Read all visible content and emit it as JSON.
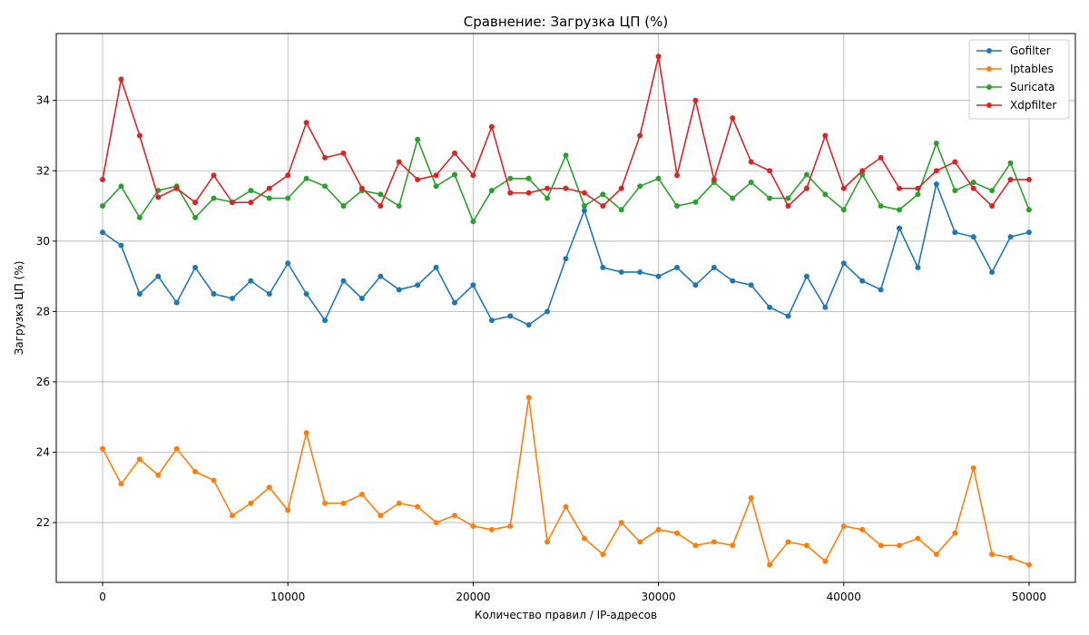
{
  "chart_data": {
    "type": "line",
    "title": "Сравнение: Загрузка ЦП (%)",
    "xlabel": "Количество правил / IP-адресов",
    "ylabel": "Загрузка ЦП (%)",
    "xlim": [
      -2500,
      52500
    ],
    "ylim": [
      20.3,
      35.9
    ],
    "xticks": [
      0,
      10000,
      20000,
      30000,
      40000,
      50000
    ],
    "yticks": [
      22,
      24,
      26,
      28,
      30,
      32,
      34
    ],
    "grid": true,
    "legend_position": "top-right",
    "x": [
      0,
      1000,
      2000,
      3000,
      4000,
      5000,
      6000,
      7000,
      8000,
      9000,
      10000,
      11000,
      12000,
      13000,
      14000,
      15000,
      16000,
      17000,
      18000,
      19000,
      20000,
      21000,
      22000,
      23000,
      24000,
      25000,
      26000,
      27000,
      28000,
      29000,
      30000,
      31000,
      32000,
      33000,
      34000,
      35000,
      36000,
      37000,
      38000,
      39000,
      40000,
      41000,
      42000,
      43000,
      44000,
      45000,
      46000,
      47000,
      48000,
      49000,
      50000
    ],
    "series": [
      {
        "name": "Gofilter",
        "color": "#1f77b4",
        "values": [
          30.25,
          29.88,
          28.5,
          29.0,
          28.25,
          29.25,
          28.5,
          28.37,
          28.87,
          28.5,
          29.37,
          28.5,
          27.75,
          28.87,
          28.37,
          29.0,
          28.62,
          28.75,
          29.25,
          28.25,
          28.75,
          27.75,
          27.87,
          27.62,
          28.0,
          29.5,
          30.87,
          29.25,
          29.12,
          29.12,
          29.0,
          29.25,
          28.75,
          29.25,
          28.87,
          28.75,
          28.12,
          27.87,
          29.0,
          28.12,
          29.37,
          28.87,
          28.62,
          30.37,
          29.25,
          31.62,
          30.25,
          30.12,
          29.12,
          30.12,
          30.25
        ]
      },
      {
        "name": "Iptables",
        "color": "#ff7f0e",
        "values": [
          24.1,
          23.1,
          23.8,
          23.35,
          24.1,
          23.45,
          23.2,
          22.2,
          22.55,
          23.0,
          22.35,
          24.55,
          22.55,
          22.55,
          22.8,
          22.2,
          22.55,
          22.45,
          22.0,
          22.2,
          21.9,
          21.8,
          21.9,
          25.55,
          21.45,
          22.45,
          21.55,
          21.1,
          22.0,
          21.45,
          21.8,
          21.7,
          21.35,
          21.45,
          21.35,
          22.7,
          20.8,
          21.45,
          21.35,
          20.9,
          21.9,
          21.8,
          21.35,
          21.35,
          21.55,
          21.1,
          21.7,
          23.55,
          21.1,
          21.0,
          20.8
        ]
      },
      {
        "name": "Suricata",
        "color": "#2ca02c",
        "values": [
          31.0,
          31.56,
          30.67,
          31.44,
          31.56,
          30.67,
          31.22,
          31.11,
          31.44,
          31.22,
          31.22,
          31.78,
          31.56,
          31.0,
          31.44,
          31.33,
          31.0,
          32.89,
          31.56,
          31.89,
          30.56,
          31.44,
          31.78,
          31.78,
          31.22,
          32.44,
          31.0,
          31.33,
          30.89,
          31.56,
          31.78,
          31.0,
          31.11,
          31.67,
          31.22,
          31.67,
          31.22,
          31.22,
          31.89,
          31.33,
          30.89,
          31.89,
          31.0,
          30.89,
          31.33,
          32.78,
          31.44,
          31.67,
          31.44,
          32.22,
          30.89
        ]
      },
      {
        "name": "Xdpfilter",
        "color": "#d62728",
        "values": [
          31.75,
          34.6,
          33.0,
          31.25,
          31.5,
          31.1,
          31.87,
          31.1,
          31.1,
          31.5,
          31.87,
          33.37,
          32.37,
          32.5,
          31.5,
          31.0,
          32.25,
          31.75,
          31.87,
          32.5,
          31.87,
          33.25,
          31.37,
          31.37,
          31.5,
          31.5,
          31.37,
          31.0,
          31.5,
          33.0,
          35.25,
          31.87,
          34.0,
          31.75,
          33.5,
          32.25,
          32.0,
          31.0,
          31.5,
          33.0,
          31.5,
          32.0,
          32.37,
          31.5,
          31.5,
          32.0,
          32.25,
          31.5,
          31.0,
          31.75,
          31.75
        ]
      }
    ]
  }
}
